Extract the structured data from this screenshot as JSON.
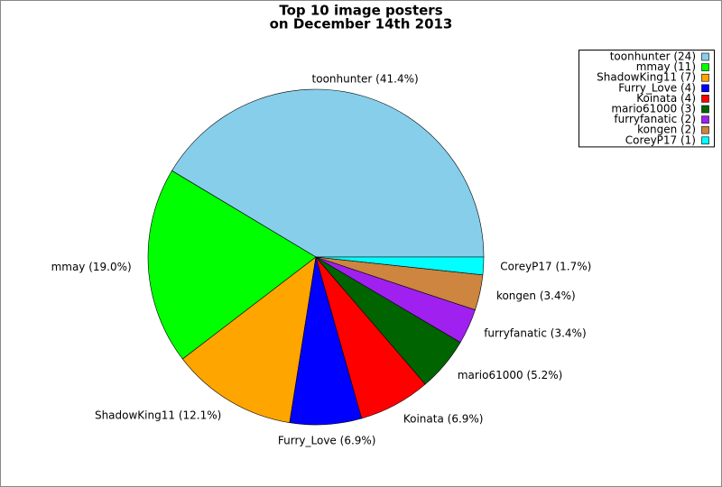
{
  "chart_data": {
    "type": "pie",
    "title": [
      "Top 10 image posters",
      "on December 14th 2013"
    ],
    "categories": [
      "toonhunter",
      "mmay",
      "ShadowKing11",
      "Furry_Love",
      "Koinata",
      "mario61000",
      "furryfanatic",
      "kongen",
      "CoreyP17"
    ],
    "values": [
      41.4,
      19.0,
      12.1,
      6.9,
      6.9,
      5.2,
      3.4,
      3.4,
      1.7
    ],
    "value_labels": [
      "toonhunter (41.4%)",
      "mmay (19.0%)",
      "ShadowKing11 (12.1%)",
      "Furry_Love (6.9%)",
      "Koinata (6.9%)",
      "mario61000 (5.2%)",
      "furryfanatic (3.4%)",
      "kongen (3.4%)",
      "CoreyP17 (1.7%)"
    ],
    "legend_labels": [
      "toonhunter (24)",
      "mmay (11)",
      "ShadowKing11 (7)",
      "Furry_Love (4)",
      "Koinata (4)",
      "mario61000 (3)",
      "furryfanatic (2)",
      "kongen (2)",
      "CoreyP17 (1)"
    ],
    "colors": [
      "#87ceeb",
      "#00ff00",
      "#ffa500",
      "#0000ff",
      "#ff0000",
      "#006400",
      "#a020f0",
      "#cd853f",
      "#00ffff"
    ],
    "legend": "upper right"
  }
}
